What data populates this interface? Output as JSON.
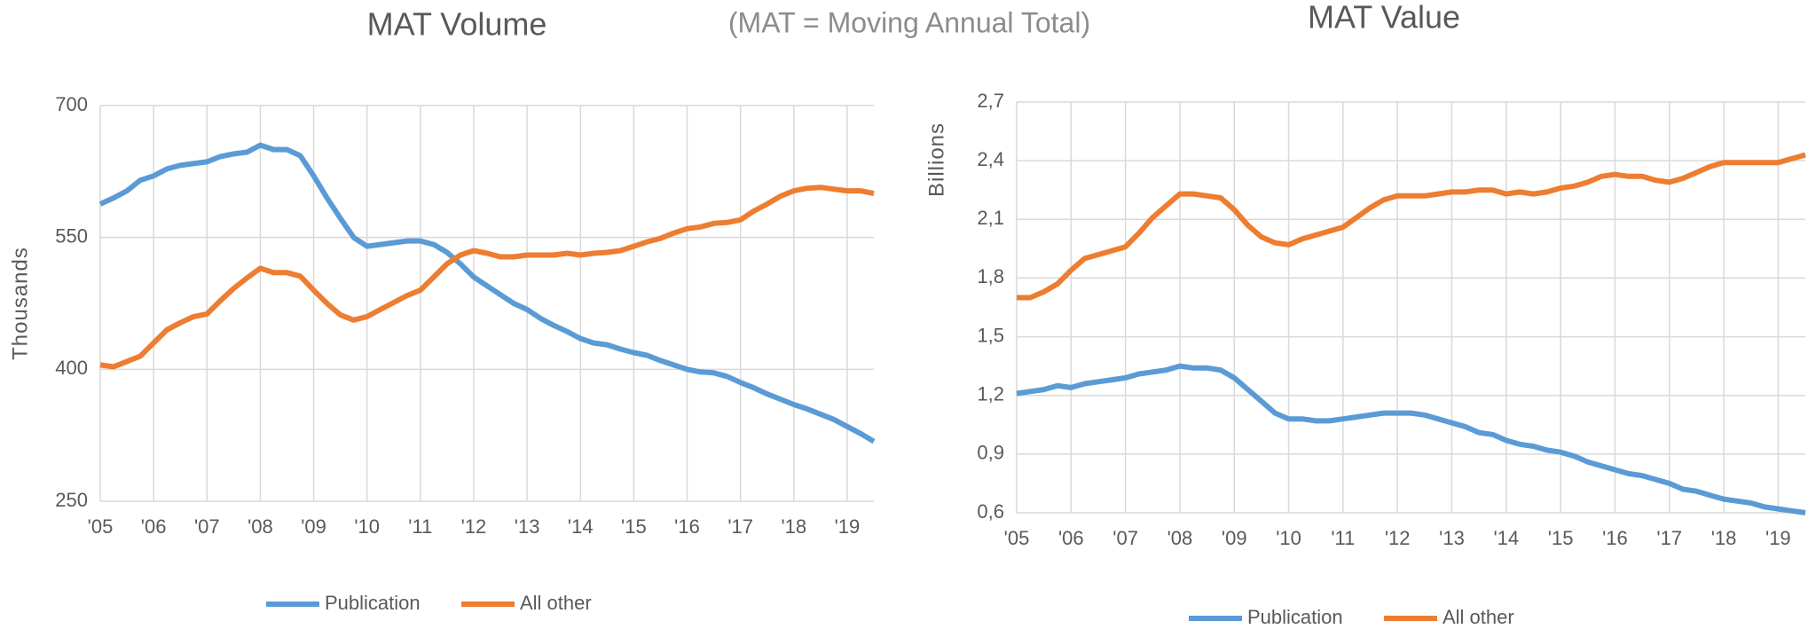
{
  "caption": "(MAT = Moving Annual Total)",
  "chart_data": [
    {
      "type": "line",
      "title": "MAT Volume",
      "y_label": "Thousands",
      "grid": true,
      "x": [
        2005,
        2005.25,
        2005.5,
        2005.75,
        2006,
        2006.25,
        2006.5,
        2006.75,
        2007,
        2007.25,
        2007.5,
        2007.75,
        2008,
        2008.25,
        2008.5,
        2008.75,
        2009,
        2009.25,
        2009.5,
        2009.75,
        2010,
        2010.25,
        2010.5,
        2010.75,
        2011,
        2011.25,
        2011.5,
        2011.75,
        2012,
        2012.25,
        2012.5,
        2012.75,
        2013,
        2013.25,
        2013.5,
        2013.75,
        2014,
        2014.25,
        2014.5,
        2014.75,
        2015,
        2015.25,
        2015.5,
        2015.75,
        2016,
        2016.25,
        2016.5,
        2016.75,
        2017,
        2017.25,
        2017.5,
        2017.75,
        2018,
        2018.25,
        2018.5,
        2018.75,
        2019,
        2019.25,
        2019.5
      ],
      "xlim": [
        2005,
        2019.5
      ],
      "xticks": [
        {
          "value": 2005,
          "label": "'05"
        },
        {
          "value": 2006,
          "label": "'06"
        },
        {
          "value": 2007,
          "label": "'07"
        },
        {
          "value": 2008,
          "label": "'08"
        },
        {
          "value": 2009,
          "label": "'09"
        },
        {
          "value": 2010,
          "label": "'10"
        },
        {
          "value": 2011,
          "label": "'11"
        },
        {
          "value": 2012,
          "label": "'12"
        },
        {
          "value": 2013,
          "label": "'13"
        },
        {
          "value": 2014,
          "label": "'14"
        },
        {
          "value": 2015,
          "label": "'15"
        },
        {
          "value": 2016,
          "label": "'16"
        },
        {
          "value": 2017,
          "label": "'17"
        },
        {
          "value": 2018,
          "label": "'18"
        },
        {
          "value": 2019,
          "label": "'19"
        }
      ],
      "ylim": [
        250,
        700
      ],
      "yticks": [
        250,
        400,
        550,
        700
      ],
      "series": [
        {
          "name": "Publication",
          "color": "#5b9bd5",
          "values": [
            588,
            595,
            603,
            615,
            620,
            628,
            632,
            634,
            636,
            642,
            645,
            647,
            655,
            650,
            650,
            643,
            620,
            595,
            572,
            550,
            540,
            542,
            544,
            546,
            546,
            542,
            533,
            520,
            505,
            495,
            485,
            475,
            468,
            458,
            450,
            443,
            435,
            430,
            428,
            423,
            419,
            416,
            410,
            405,
            400,
            397,
            396,
            392,
            385,
            379,
            372,
            366,
            360,
            355,
            349,
            343,
            335,
            327,
            318
          ]
        },
        {
          "name": "All other",
          "color": "#ed7d31",
          "values": [
            405,
            403,
            409,
            415,
            430,
            445,
            453,
            460,
            463,
            478,
            492,
            504,
            515,
            510,
            510,
            506,
            490,
            475,
            462,
            456,
            460,
            468,
            476,
            484,
            490,
            505,
            520,
            530,
            535,
            532,
            528,
            528,
            530,
            530,
            530,
            532,
            530,
            532,
            533,
            535,
            540,
            545,
            549,
            555,
            560,
            562,
            566,
            567,
            570,
            580,
            588,
            597,
            603,
            606,
            607,
            605,
            603,
            603,
            600
          ]
        }
      ]
    },
    {
      "type": "line",
      "title": "MAT Value",
      "y_label": "Billions",
      "grid": true,
      "x": [
        2005,
        2005.25,
        2005.5,
        2005.75,
        2006,
        2006.25,
        2006.5,
        2006.75,
        2007,
        2007.25,
        2007.5,
        2007.75,
        2008,
        2008.25,
        2008.5,
        2008.75,
        2009,
        2009.25,
        2009.5,
        2009.75,
        2010,
        2010.25,
        2010.5,
        2010.75,
        2011,
        2011.25,
        2011.5,
        2011.75,
        2012,
        2012.25,
        2012.5,
        2012.75,
        2013,
        2013.25,
        2013.5,
        2013.75,
        2014,
        2014.25,
        2014.5,
        2014.75,
        2015,
        2015.25,
        2015.5,
        2015.75,
        2016,
        2016.25,
        2016.5,
        2016.75,
        2017,
        2017.25,
        2017.5,
        2017.75,
        2018,
        2018.25,
        2018.5,
        2018.75,
        2019,
        2019.25,
        2019.5
      ],
      "xlim": [
        2005,
        2019.5
      ],
      "xticks": [
        {
          "value": 2005,
          "label": "'05"
        },
        {
          "value": 2006,
          "label": "'06"
        },
        {
          "value": 2007,
          "label": "'07"
        },
        {
          "value": 2008,
          "label": "'08"
        },
        {
          "value": 2009,
          "label": "'09"
        },
        {
          "value": 2010,
          "label": "'10"
        },
        {
          "value": 2011,
          "label": "'11"
        },
        {
          "value": 2012,
          "label": "'12"
        },
        {
          "value": 2013,
          "label": "'13"
        },
        {
          "value": 2014,
          "label": "'14"
        },
        {
          "value": 2015,
          "label": "'15"
        },
        {
          "value": 2016,
          "label": "'16"
        },
        {
          "value": 2017,
          "label": "'17"
        },
        {
          "value": 2018,
          "label": "'18"
        },
        {
          "value": 2019,
          "label": "'19"
        }
      ],
      "ylim": [
        0.6,
        2.7
      ],
      "yticks": [
        {
          "value": 0.6,
          "label": "0,6"
        },
        {
          "value": 0.9,
          "label": "0,9"
        },
        {
          "value": 1.2,
          "label": "1,2"
        },
        {
          "value": 1.5,
          "label": "1,5"
        },
        {
          "value": 1.8,
          "label": "1,8"
        },
        {
          "value": 2.1,
          "label": "2,1"
        },
        {
          "value": 2.4,
          "label": "2,4"
        },
        {
          "value": 2.7,
          "label": "2,7"
        }
      ],
      "series": [
        {
          "name": "Publication",
          "color": "#5b9bd5",
          "values": [
            1.21,
            1.22,
            1.23,
            1.25,
            1.24,
            1.26,
            1.27,
            1.28,
            1.29,
            1.31,
            1.32,
            1.33,
            1.35,
            1.34,
            1.34,
            1.33,
            1.29,
            1.23,
            1.17,
            1.11,
            1.08,
            1.08,
            1.07,
            1.07,
            1.08,
            1.09,
            1.1,
            1.11,
            1.11,
            1.11,
            1.1,
            1.08,
            1.06,
            1.04,
            1.01,
            1.0,
            0.97,
            0.95,
            0.94,
            0.92,
            0.91,
            0.89,
            0.86,
            0.84,
            0.82,
            0.8,
            0.79,
            0.77,
            0.75,
            0.72,
            0.71,
            0.69,
            0.67,
            0.66,
            0.65,
            0.63,
            0.62,
            0.61,
            0.6
          ]
        },
        {
          "name": "All other",
          "color": "#ed7d31",
          "values": [
            1.7,
            1.7,
            1.73,
            1.77,
            1.84,
            1.9,
            1.92,
            1.94,
            1.96,
            2.03,
            2.11,
            2.17,
            2.23,
            2.23,
            2.22,
            2.21,
            2.15,
            2.07,
            2.01,
            1.98,
            1.97,
            2.0,
            2.02,
            2.04,
            2.06,
            2.11,
            2.16,
            2.2,
            2.22,
            2.22,
            2.22,
            2.23,
            2.24,
            2.24,
            2.25,
            2.25,
            2.23,
            2.24,
            2.23,
            2.24,
            2.26,
            2.27,
            2.29,
            2.32,
            2.33,
            2.32,
            2.32,
            2.3,
            2.29,
            2.31,
            2.34,
            2.37,
            2.39,
            2.39,
            2.39,
            2.39,
            2.39,
            2.41,
            2.43
          ]
        }
      ]
    }
  ]
}
